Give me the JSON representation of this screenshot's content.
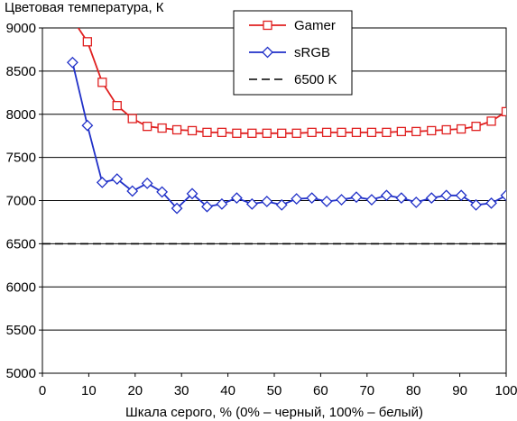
{
  "chart_data": {
    "type": "line",
    "title": "Цветовая температура, К",
    "xlabel": "Шкала серого, % (0% – черный, 100% – белый)",
    "ylabel": "",
    "xlim": [
      0,
      100
    ],
    "ylim": [
      5000,
      9000
    ],
    "xticks": [
      0,
      10,
      20,
      30,
      40,
      50,
      60,
      70,
      80,
      90,
      100
    ],
    "yticks": [
      5000,
      5500,
      6000,
      6500,
      7000,
      7500,
      8000,
      8500,
      9000
    ],
    "grid": "horizontal",
    "legend_position": "top-center",
    "series": [
      {
        "name": "Gamer",
        "color": "#e02020",
        "marker": "square",
        "points": [
          [
            6.5,
            9100
          ],
          [
            9.7,
            8840
          ],
          [
            12.9,
            8370
          ],
          [
            16.1,
            8100
          ],
          [
            19.4,
            7950
          ],
          [
            22.6,
            7860
          ],
          [
            25.8,
            7840
          ],
          [
            29.0,
            7820
          ],
          [
            32.3,
            7810
          ],
          [
            35.5,
            7790
          ],
          [
            38.7,
            7790
          ],
          [
            41.9,
            7780
          ],
          [
            45.2,
            7780
          ],
          [
            48.4,
            7780
          ],
          [
            51.6,
            7780
          ],
          [
            54.8,
            7780
          ],
          [
            58.1,
            7790
          ],
          [
            61.3,
            7790
          ],
          [
            64.5,
            7790
          ],
          [
            67.7,
            7790
          ],
          [
            71.0,
            7790
          ],
          [
            74.2,
            7790
          ],
          [
            77.4,
            7800
          ],
          [
            80.6,
            7800
          ],
          [
            83.9,
            7810
          ],
          [
            87.1,
            7820
          ],
          [
            90.3,
            7830
          ],
          [
            93.5,
            7860
          ],
          [
            96.8,
            7920
          ],
          [
            100,
            8030
          ]
        ]
      },
      {
        "name": "sRGB",
        "color": "#2030c8",
        "marker": "diamond",
        "points": [
          [
            6.5,
            8600
          ],
          [
            9.7,
            7870
          ],
          [
            12.9,
            7210
          ],
          [
            16.1,
            7250
          ],
          [
            19.4,
            7110
          ],
          [
            22.6,
            7200
          ],
          [
            25.8,
            7100
          ],
          [
            29.0,
            6910
          ],
          [
            32.3,
            7080
          ],
          [
            35.5,
            6930
          ],
          [
            38.7,
            6960
          ],
          [
            41.9,
            7030
          ],
          [
            45.2,
            6960
          ],
          [
            48.4,
            6990
          ],
          [
            51.6,
            6950
          ],
          [
            54.8,
            7020
          ],
          [
            58.1,
            7030
          ],
          [
            61.3,
            6990
          ],
          [
            64.5,
            7010
          ],
          [
            67.7,
            7040
          ],
          [
            71.0,
            7010
          ],
          [
            74.2,
            7060
          ],
          [
            77.4,
            7030
          ],
          [
            80.6,
            6980
          ],
          [
            83.9,
            7030
          ],
          [
            87.1,
            7060
          ],
          [
            90.3,
            7060
          ],
          [
            93.5,
            6950
          ],
          [
            96.8,
            6970
          ],
          [
            100,
            7060
          ]
        ]
      },
      {
        "name": "6500 K",
        "color": "#000000",
        "marker": "none",
        "dashed": true,
        "points": [
          [
            0,
            6500
          ],
          [
            100,
            6500
          ]
        ]
      }
    ]
  }
}
